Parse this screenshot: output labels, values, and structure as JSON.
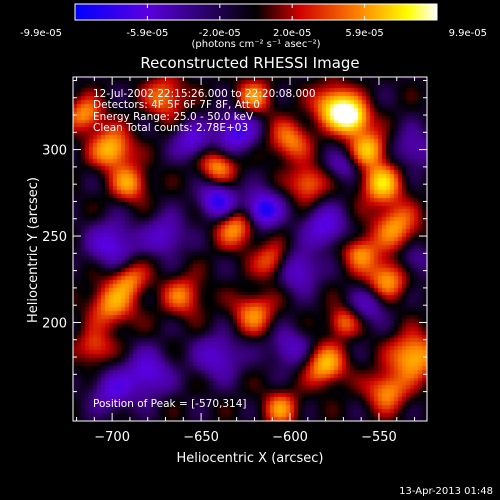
{
  "colorbar": {
    "tick_labels": [
      "-9.9e-05",
      "-5.9e-05",
      "-2.0e-05",
      "2.0e-05",
      "5.9e-05",
      "9.9e-05"
    ],
    "unit_label": "(photons cm⁻² s⁻¹ asec⁻²)",
    "colors": [
      "#0000ff",
      "#7f00ff",
      "#000000",
      "#ff0000",
      "#ff8c00",
      "#ffff00",
      "#ffffff"
    ]
  },
  "info": {
    "time_range": "12-Jul-2002 22:15:26.000 to 22:20:08.000",
    "detectors": "Detectors: 4F 5F 6F 7F 8F, Att 0",
    "energy_range": "Energy Range: 25.0 - 50.0 keV",
    "clean": "Clean    Total counts: 2.78E+03",
    "peak": "Position of Peak = [-570,314]"
  },
  "timestamp": "13-Apr-2013 01:48",
  "chart_data": {
    "type": "heatmap",
    "title": "Reconstructed RHESSI Image",
    "xlabel": "Heliocentric X (arcsec)",
    "ylabel": "Heliocentric Y (arcsec)",
    "xlim": [
      -722,
      -523
    ],
    "ylim": [
      143,
      342
    ],
    "x_ticks": [
      -700,
      -650,
      -600,
      -550
    ],
    "y_ticks": [
      200,
      250,
      300
    ],
    "x_tick_labels": [
      "−700",
      "−650",
      "−600",
      "−550"
    ],
    "y_tick_labels": [
      "200",
      "250",
      "300"
    ],
    "color_range": [
      -9.9e-05,
      9.9e-05
    ],
    "peak_position": [
      -570,
      314
    ],
    "blobs": [
      {
        "x": -565,
        "y": 318,
        "v": 1.0,
        "s": 7
      },
      {
        "x": -575,
        "y": 325,
        "v": 0.8,
        "s": 8
      },
      {
        "x": -555,
        "y": 300,
        "v": 0.7,
        "s": 7
      },
      {
        "x": -548,
        "y": 280,
        "v": 0.75,
        "s": 8
      },
      {
        "x": -540,
        "y": 255,
        "v": 0.6,
        "s": 9
      },
      {
        "x": -560,
        "y": 240,
        "v": 0.55,
        "s": 7
      },
      {
        "x": -545,
        "y": 225,
        "v": 0.65,
        "s": 8
      },
      {
        "x": -530,
        "y": 180,
        "v": 0.75,
        "s": 9
      },
      {
        "x": -545,
        "y": 160,
        "v": 0.6,
        "s": 8
      },
      {
        "x": -580,
        "y": 175,
        "v": 0.7,
        "s": 8
      },
      {
        "x": -605,
        "y": 150,
        "v": 0.55,
        "s": 7
      },
      {
        "x": -570,
        "y": 200,
        "v": 0.5,
        "s": 6
      },
      {
        "x": -620,
        "y": 205,
        "v": 0.55,
        "s": 8
      },
      {
        "x": -660,
        "y": 215,
        "v": 0.5,
        "s": 8
      },
      {
        "x": -700,
        "y": 210,
        "v": 0.6,
        "s": 9
      },
      {
        "x": -690,
        "y": 225,
        "v": 0.5,
        "s": 7
      },
      {
        "x": -710,
        "y": 185,
        "v": 0.45,
        "s": 7
      },
      {
        "x": -630,
        "y": 255,
        "v": 0.6,
        "s": 8
      },
      {
        "x": -610,
        "y": 235,
        "v": 0.5,
        "s": 7
      },
      {
        "x": -590,
        "y": 280,
        "v": 0.55,
        "s": 7
      },
      {
        "x": -600,
        "y": 305,
        "v": 0.55,
        "s": 8
      },
      {
        "x": -640,
        "y": 290,
        "v": 0.6,
        "s": 7
      },
      {
        "x": -700,
        "y": 300,
        "v": 0.75,
        "s": 8
      },
      {
        "x": -690,
        "y": 280,
        "v": 0.6,
        "s": 7
      },
      {
        "x": -715,
        "y": 320,
        "v": 0.6,
        "s": 7
      },
      {
        "x": -670,
        "y": 330,
        "v": 0.55,
        "s": 8
      },
      {
        "x": -620,
        "y": 330,
        "v": 0.55,
        "s": 7
      },
      {
        "x": -655,
        "y": 305,
        "v": -0.55,
        "s": 7
      },
      {
        "x": -640,
        "y": 270,
        "v": -0.8,
        "s": 7
      },
      {
        "x": -615,
        "y": 265,
        "v": -0.9,
        "s": 7
      },
      {
        "x": -630,
        "y": 310,
        "v": -0.7,
        "s": 8
      },
      {
        "x": -580,
        "y": 255,
        "v": -0.6,
        "s": 8
      },
      {
        "x": -595,
        "y": 230,
        "v": -0.55,
        "s": 8
      },
      {
        "x": -700,
        "y": 245,
        "v": -0.6,
        "s": 9
      },
      {
        "x": -670,
        "y": 250,
        "v": -0.5,
        "s": 8
      },
      {
        "x": -680,
        "y": 170,
        "v": -0.6,
        "s": 9
      },
      {
        "x": -640,
        "y": 180,
        "v": -0.5,
        "s": 9
      },
      {
        "x": -600,
        "y": 185,
        "v": -0.45,
        "s": 8
      },
      {
        "x": -700,
        "y": 160,
        "v": -0.5,
        "s": 8
      },
      {
        "x": -555,
        "y": 210,
        "v": -0.4,
        "s": 7
      },
      {
        "x": -570,
        "y": 290,
        "v": -0.35,
        "s": 6
      },
      {
        "x": -530,
        "y": 300,
        "v": -0.4,
        "s": 8
      },
      {
        "x": -530,
        "y": 235,
        "v": -0.35,
        "s": 7
      }
    ]
  }
}
